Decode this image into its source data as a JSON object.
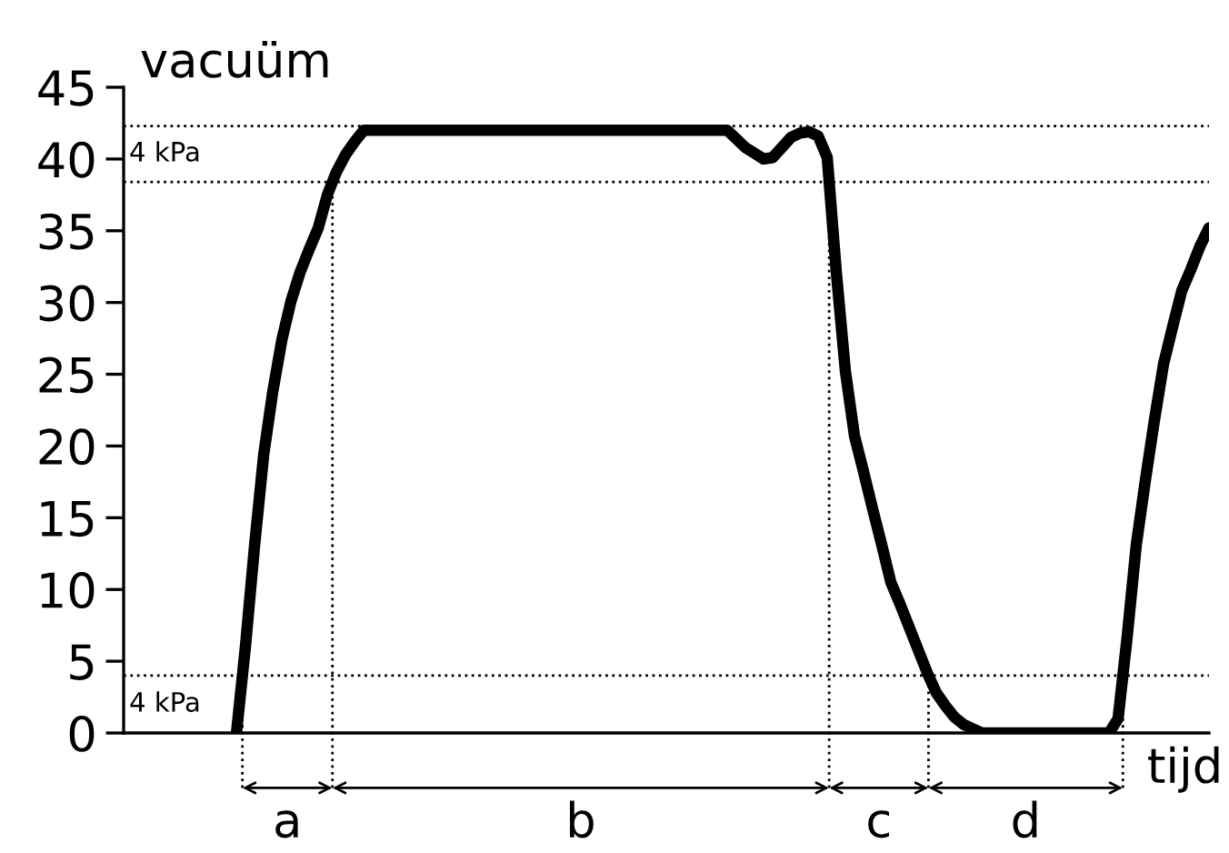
{
  "chart_data": {
    "type": "line",
    "xlabel": "tijd",
    "ylabel": "vacuüm",
    "ylim": [
      0,
      45
    ],
    "yticks": [
      0,
      5,
      10,
      15,
      20,
      25,
      30,
      35,
      40,
      45
    ],
    "tick_labels": "y",
    "grid": false,
    "line_style": "solid",
    "marker": "none",
    "categories": [
      null,
      null,
      null,
      null,
      null,
      null,
      null,
      null,
      null,
      null,
      null,
      null,
      null,
      null,
      null,
      null,
      null,
      null,
      null,
      null,
      null,
      null,
      null,
      null,
      null,
      null,
      null,
      null,
      null,
      null,
      null,
      null,
      null,
      null,
      null,
      null,
      null,
      null,
      null,
      null,
      null,
      null,
      null,
      null,
      null,
      null,
      null,
      null,
      null,
      null,
      null,
      null,
      null,
      null,
      null,
      null,
      null,
      null,
      null,
      null,
      null,
      null,
      null,
      null,
      null,
      null,
      null,
      null,
      null,
      null,
      null,
      null,
      null,
      null,
      null,
      null,
      null,
      null,
      null,
      null,
      null,
      null,
      null,
      null,
      null,
      null,
      null,
      null,
      null,
      null,
      null,
      null,
      null,
      null,
      null,
      null,
      null,
      null,
      null,
      null,
      null,
      null,
      null,
      null,
      null,
      null,
      null,
      null
    ],
    "series": [
      {
        "color": "#000000",
        "values": [
          0,
          6.1,
          13.1,
          19.4,
          23.8,
          27.4,
          30.1,
          32.1,
          33.7,
          35.2,
          37.5,
          39.1,
          40.3,
          41.2,
          42,
          42,
          42,
          42,
          42,
          42,
          42,
          42,
          42,
          42,
          42,
          42,
          42,
          42,
          42,
          42,
          42,
          42,
          42,
          42,
          42,
          42,
          42,
          42,
          42,
          42,
          42,
          42,
          42,
          42,
          42,
          42,
          42,
          42,
          42,
          42,
          42,
          42,
          42,
          42,
          42,
          41.4,
          40.8,
          40.4,
          40.0,
          40.1,
          40.8,
          41.5,
          41.8,
          41.9,
          41.6,
          40.1,
          32.1,
          25.2,
          20.7,
          18.2,
          15.6,
          13.1,
          10.5,
          9.0,
          7.4,
          5.8,
          4.2,
          2.8,
          1.9,
          1.1,
          0.6,
          0.3,
          0,
          0,
          0,
          0,
          0,
          0,
          0,
          0,
          0,
          0,
          0,
          0,
          0,
          0,
          0,
          1,
          6.7,
          13.1,
          17.6,
          21.8,
          25.7,
          28.3,
          30.8,
          32.3,
          33.9,
          35.2
        ]
      }
    ],
    "ref_lines": [
      {
        "axis": "y",
        "value": 42.3,
        "line_style": "dotted",
        "color": "#000000"
      },
      {
        "axis": "y",
        "value": 38.4,
        "line_style": "dotted",
        "color": "#000000"
      },
      {
        "axis": "y",
        "value": 4,
        "line_style": "dotted",
        "color": "#000000"
      }
    ],
    "annotations": [
      "4 kPa",
      "4 kPa",
      "a",
      "b",
      "c",
      "d"
    ]
  }
}
